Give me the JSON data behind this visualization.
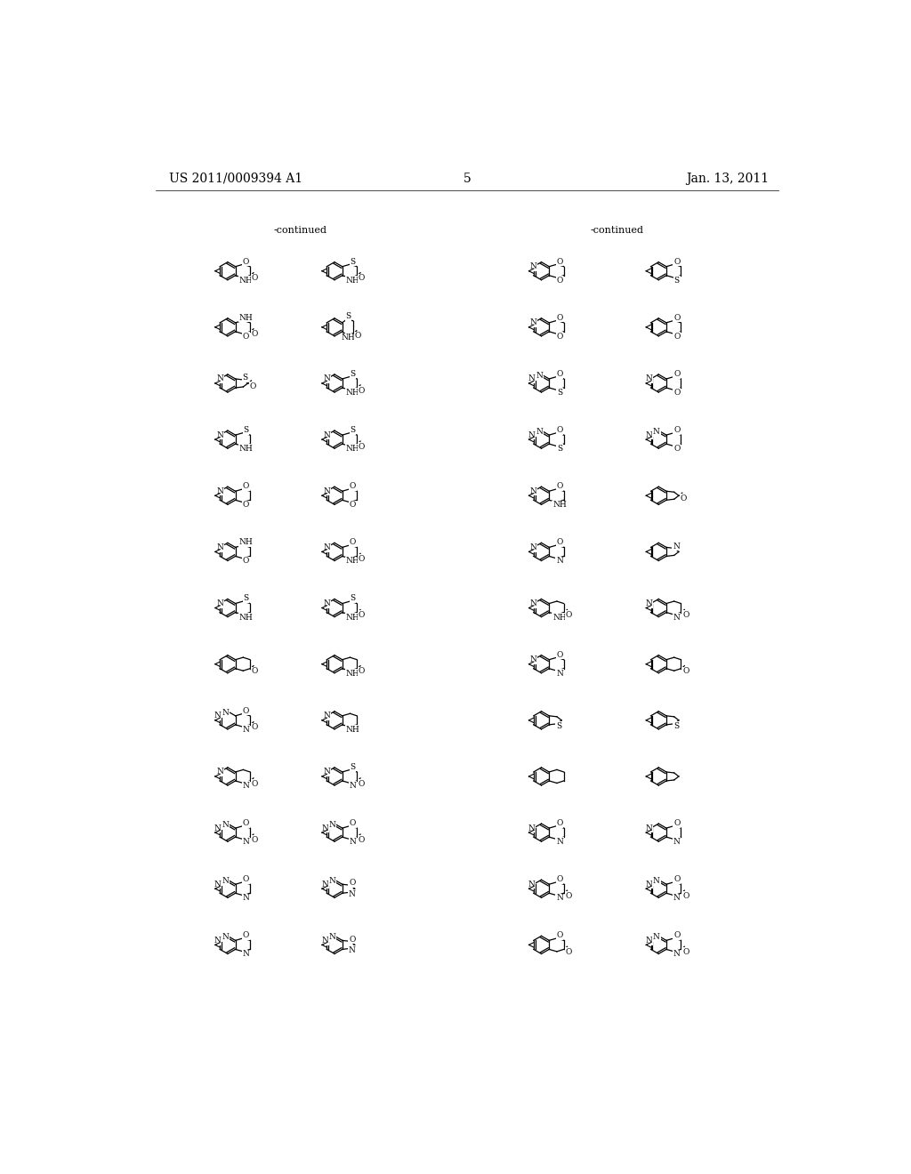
{
  "title_left": "US 2011/0009394 A1",
  "title_right": "Jan. 13, 2011",
  "page_number": "5",
  "continued_left": "-continued",
  "continued_right": "-continued",
  "bg_color": "#ffffff",
  "text_color": "#000000"
}
